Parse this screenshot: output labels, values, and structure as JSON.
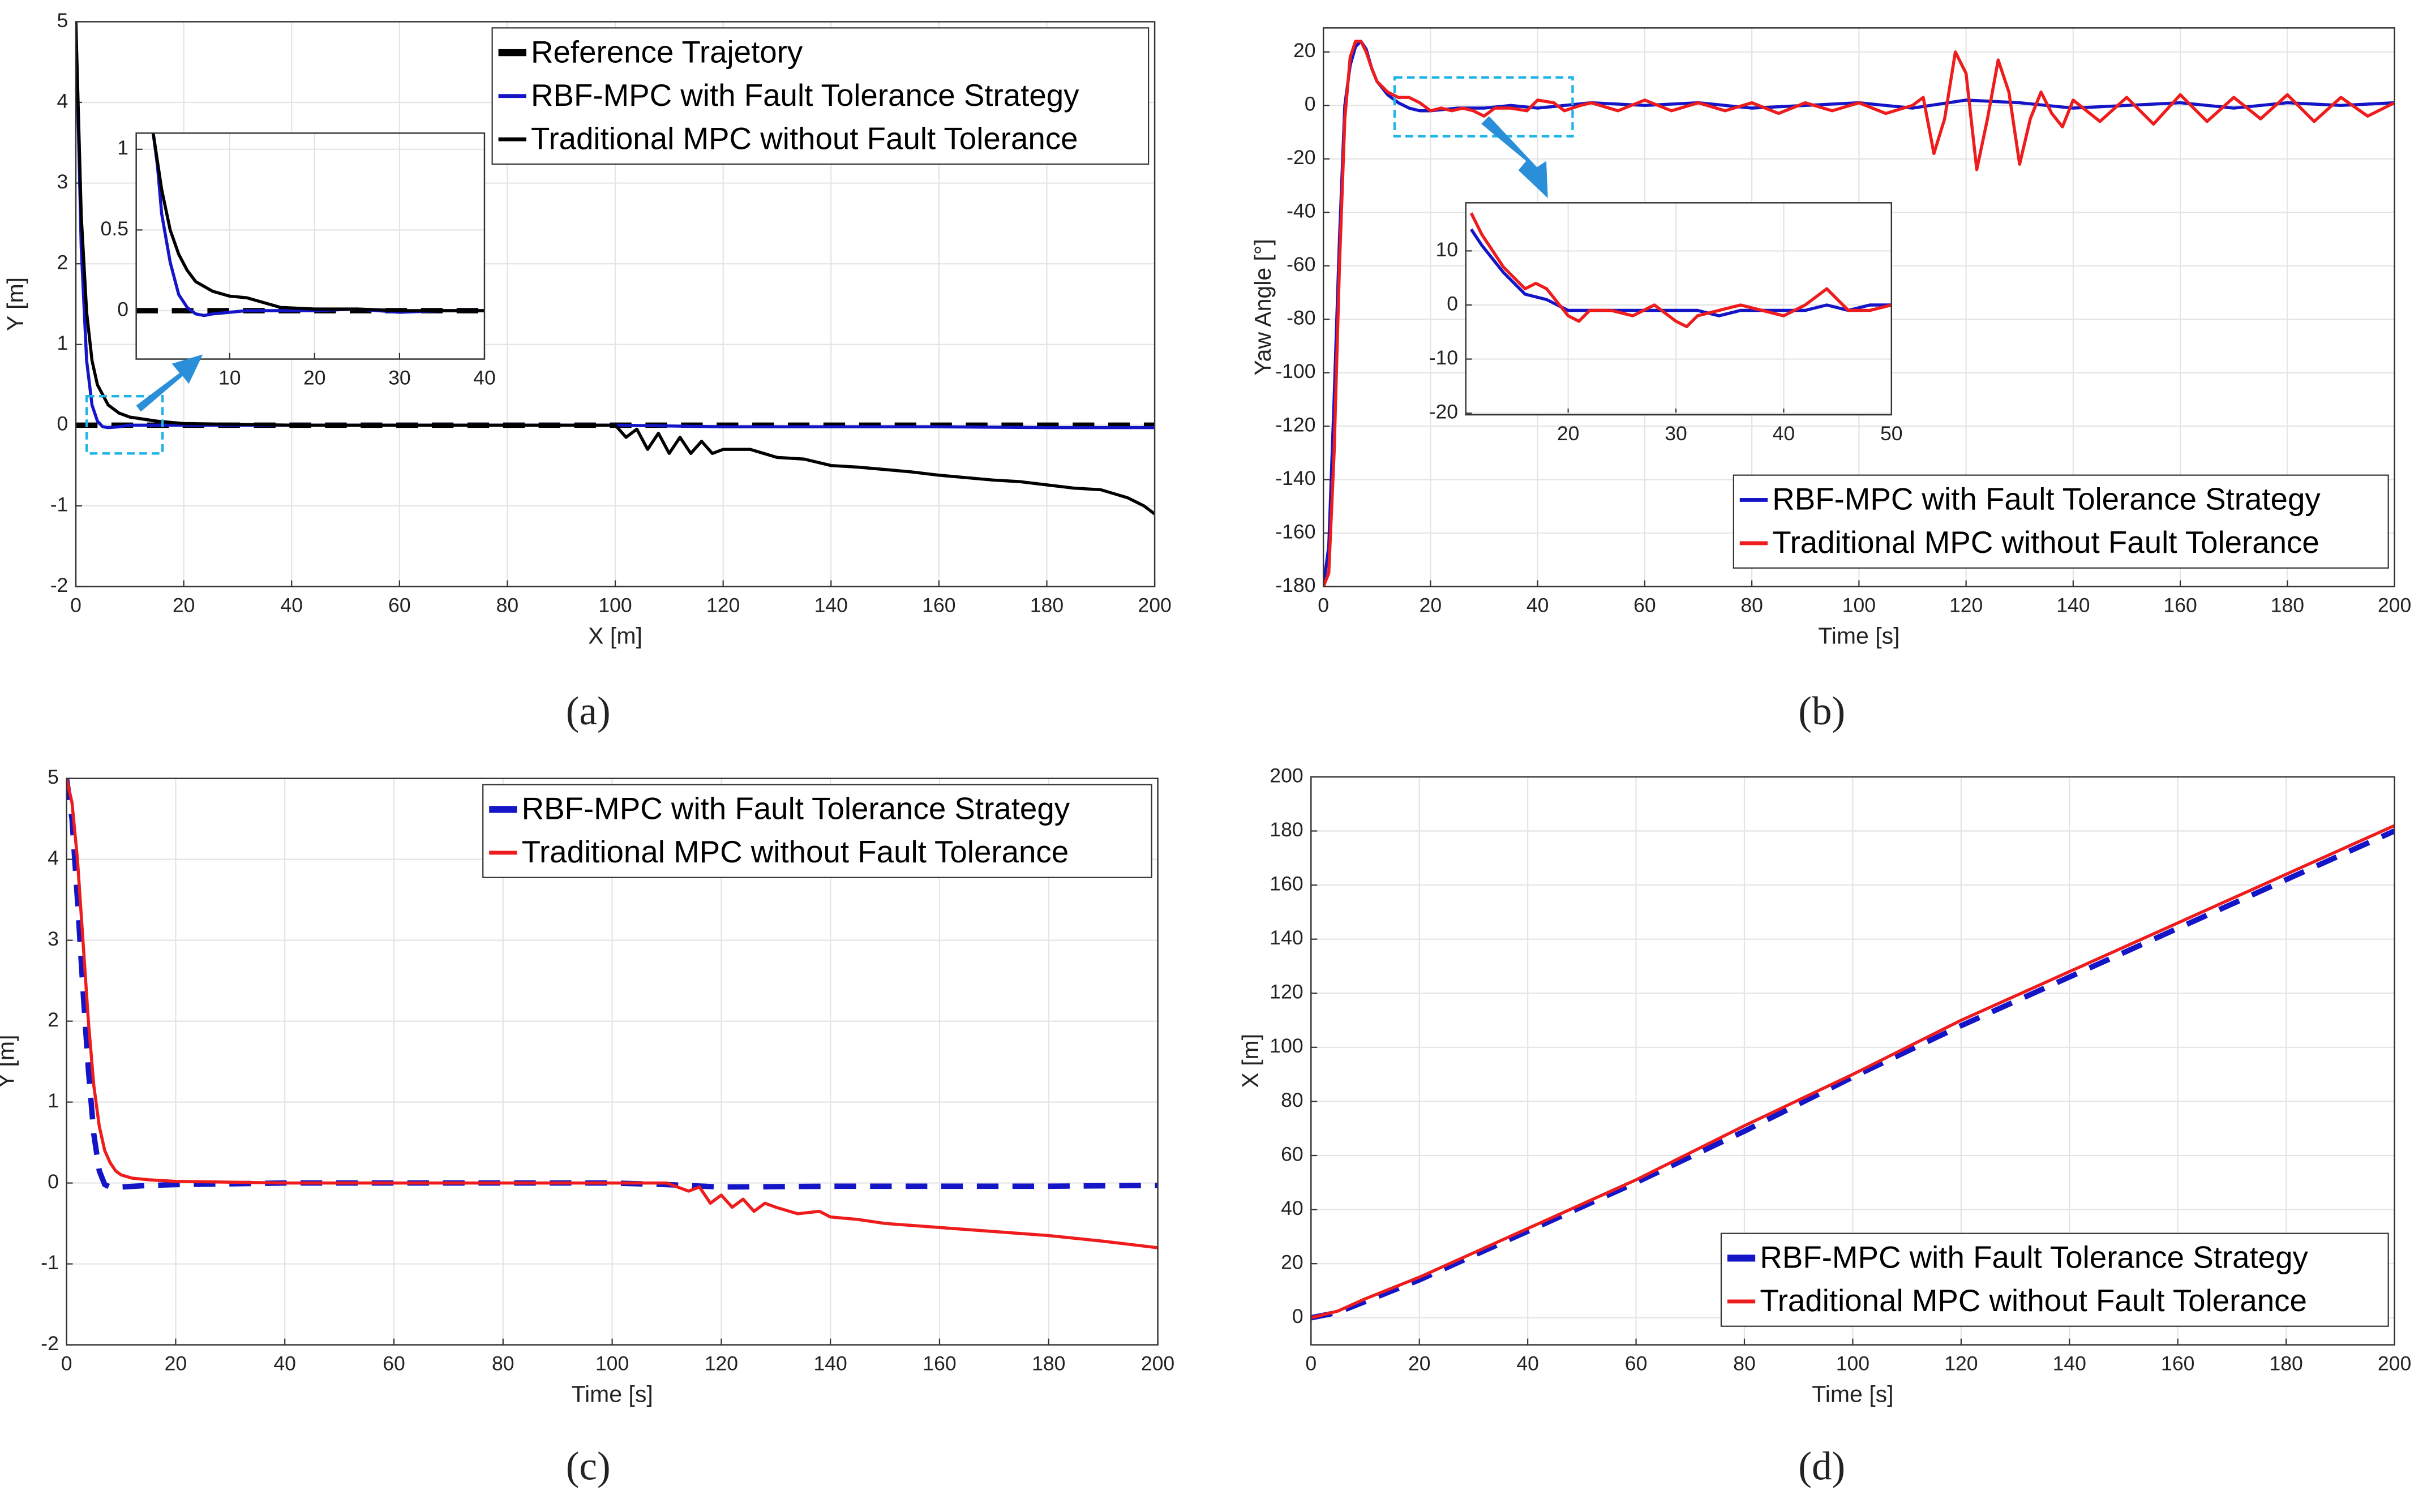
{
  "chart_data": [
    {
      "type": "line",
      "label": "(a)",
      "xlabel": "X [m]",
      "ylabel": "Y [m]",
      "xlim": [
        0,
        200
      ],
      "ylim": [
        -2,
        5
      ],
      "xticks": [
        0,
        20,
        40,
        60,
        80,
        100,
        120,
        140,
        160,
        180,
        200
      ],
      "yticks": [
        -2,
        -1,
        0,
        1,
        2,
        3,
        4,
        5
      ],
      "grid": true,
      "legend": "top-right",
      "series": [
        {
          "name": "Reference Trajetory",
          "color": "#000000",
          "dashed": true,
          "x": [
            0,
            200
          ],
          "values": [
            0,
            0
          ]
        },
        {
          "name": "RBF-MPC with Fault Tolerance Strategy",
          "color": "#1515c8",
          "dashed": false,
          "x": [
            0,
            1,
            2,
            3,
            4,
            5,
            6,
            8,
            10,
            15,
            20,
            40,
            60,
            80,
            100,
            120,
            140,
            160,
            180,
            200
          ],
          "values": [
            5,
            2.2,
            0.8,
            0.25,
            0.05,
            -0.02,
            -0.03,
            -0.02,
            0,
            0,
            0,
            0,
            0,
            0,
            0,
            -0.02,
            -0.02,
            -0.02,
            -0.03,
            -0.03
          ]
        },
        {
          "name": "Traditional MPC without Fault Tolerance",
          "color": "#000000",
          "dashed": false,
          "x": [
            0,
            1,
            2,
            3,
            4,
            6,
            8,
            10,
            15,
            20,
            30,
            40,
            60,
            80,
            100,
            102,
            104,
            106,
            108,
            110,
            112,
            114,
            116,
            118,
            120,
            125,
            130,
            135,
            140,
            145,
            150,
            155,
            160,
            165,
            170,
            175,
            180,
            185,
            190,
            195,
            198,
            200
          ],
          "values": [
            5,
            2.6,
            1.4,
            0.8,
            0.5,
            0.25,
            0.15,
            0.1,
            0.05,
            0.02,
            0.01,
            0,
            0,
            0,
            0,
            -0.15,
            -0.05,
            -0.3,
            -0.1,
            -0.35,
            -0.15,
            -0.35,
            -0.2,
            -0.35,
            -0.3,
            -0.3,
            -0.4,
            -0.42,
            -0.5,
            -0.52,
            -0.55,
            -0.58,
            -0.62,
            -0.65,
            -0.68,
            -0.7,
            -0.74,
            -0.78,
            -0.8,
            -0.9,
            -1,
            -1.1
          ]
        }
      ]
    },
    {
      "type": "line",
      "label": "(b)",
      "xlabel": "Time [s]",
      "ylabel": "Yaw Angle [°]",
      "xlim": [
        0,
        200
      ],
      "ylim": [
        -180,
        29
      ],
      "xticks": [
        0,
        20,
        40,
        60,
        80,
        100,
        120,
        140,
        160,
        180,
        200
      ],
      "yticks": [
        -180,
        -160,
        -140,
        -120,
        -100,
        -80,
        -60,
        -40,
        -20,
        0,
        20
      ],
      "grid": true,
      "legend": "bottom-right",
      "series": [
        {
          "name": "RBF-MPC with Fault Tolerance Strategy",
          "color": "#1515c8",
          "dashed": false,
          "x": [
            0,
            1,
            2,
            3,
            4,
            5,
            6,
            7,
            8,
            9,
            10,
            12,
            14,
            16,
            18,
            20,
            25,
            30,
            35,
            40,
            50,
            60,
            70,
            80,
            90,
            100,
            110,
            120,
            130,
            140,
            150,
            160,
            170,
            180,
            190,
            200
          ],
          "values": [
            -180,
            -165,
            -110,
            -50,
            0,
            15,
            22,
            24,
            21,
            14,
            9,
            4,
            1,
            -1,
            -2,
            -2,
            -1,
            -1,
            0,
            -1,
            1,
            0,
            1,
            -1,
            0,
            1,
            -1,
            2,
            1,
            -1,
            0,
            1,
            -1,
            1,
            0,
            1
          ]
        },
        {
          "name": "Traditional MPC without Fault Tolerance",
          "color": "#ee1c1c",
          "dashed": false,
          "x": [
            0,
            1,
            2,
            3,
            4,
            5,
            6,
            7,
            8,
            9,
            10,
            12,
            14,
            16,
            18,
            20,
            22,
            24,
            26,
            28,
            30,
            32,
            35,
            38,
            40,
            43,
            45,
            48,
            50,
            55,
            60,
            65,
            70,
            75,
            80,
            85,
            90,
            95,
            100,
            105,
            110,
            112,
            114,
            116,
            118,
            120,
            122,
            124,
            126,
            128,
            130,
            132,
            134,
            136,
            138,
            140,
            145,
            150,
            155,
            160,
            165,
            170,
            175,
            180,
            185,
            190,
            195,
            200
          ],
          "values": [
            -180,
            -175,
            -130,
            -60,
            -5,
            18,
            24,
            24,
            20,
            14,
            9,
            5,
            3,
            3,
            1,
            -2,
            -1,
            -2,
            -1,
            -2,
            -4,
            -1,
            -1,
            -2,
            2,
            1,
            -2,
            0,
            1,
            -2,
            2,
            -2,
            1,
            -2,
            1,
            -3,
            1,
            -2,
            1,
            -3,
            0,
            3,
            -18,
            -5,
            20,
            12,
            -24,
            -5,
            17,
            5,
            -22,
            -5,
            5,
            -3,
            -8,
            2,
            -6,
            3,
            -7,
            4,
            -6,
            3,
            -5,
            4,
            -6,
            3,
            -4,
            1
          ]
        }
      ]
    },
    {
      "type": "line",
      "label": "(c)",
      "xlabel": "Time [s]",
      "ylabel": "Y [m]",
      "xlim": [
        0,
        200
      ],
      "ylim": [
        -2,
        5
      ],
      "xticks": [
        0,
        20,
        40,
        60,
        80,
        100,
        120,
        140,
        160,
        180,
        200
      ],
      "yticks": [
        -2,
        -1,
        0,
        1,
        2,
        3,
        4,
        5
      ],
      "grid": true,
      "legend": "top-right",
      "series": [
        {
          "name": "RBF-MPC with Fault Tolerance Strategy",
          "color": "#1515c8",
          "dashed": true,
          "x": [
            0,
            1,
            2,
            3,
            4,
            5,
            6,
            7,
            8,
            10,
            15,
            20,
            40,
            60,
            80,
            100,
            110,
            120,
            140,
            160,
            180,
            200
          ],
          "values": [
            5,
            4.5,
            3.5,
            2.4,
            1.4,
            0.6,
            0.15,
            -0.02,
            -0.05,
            -0.05,
            -0.03,
            -0.02,
            0,
            0,
            0,
            0,
            -0.02,
            -0.05,
            -0.04,
            -0.04,
            -0.04,
            -0.03
          ]
        },
        {
          "name": "Traditional MPC without Fault Tolerance",
          "color": "#ee1c1c",
          "dashed": false,
          "x": [
            0,
            1,
            2,
            3,
            4,
            5,
            6,
            7,
            8,
            9,
            10,
            12,
            15,
            20,
            40,
            60,
            80,
            100,
            110,
            114,
            116,
            118,
            120,
            122,
            124,
            126,
            128,
            130,
            134,
            138,
            140,
            145,
            150,
            160,
            170,
            180,
            190,
            200
          ],
          "values": [
            5,
            4.7,
            4.0,
            3.0,
            2.0,
            1.2,
            0.7,
            0.4,
            0.25,
            0.15,
            0.1,
            0.06,
            0.04,
            0.02,
            0,
            0,
            0,
            0,
            0,
            -0.1,
            -0.05,
            -0.25,
            -0.15,
            -0.3,
            -0.2,
            -0.35,
            -0.25,
            -0.3,
            -0.38,
            -0.35,
            -0.42,
            -0.45,
            -0.5,
            -0.55,
            -0.6,
            -0.65,
            -0.72,
            -0.8
          ]
        }
      ]
    },
    {
      "type": "line",
      "label": "(d)",
      "xlabel": "Time [s]",
      "ylabel": "X [m]",
      "xlim": [
        0,
        200
      ],
      "ylim": [
        -10,
        200
      ],
      "xticks": [
        0,
        20,
        40,
        60,
        80,
        100,
        120,
        140,
        160,
        180,
        200
      ],
      "yticks": [
        0,
        20,
        40,
        60,
        80,
        100,
        120,
        140,
        160,
        180,
        200
      ],
      "grid": true,
      "legend": "bottom-right",
      "series": [
        {
          "name": "RBF-MPC with Fault Tolerance Strategy",
          "color": "#1515c8",
          "dashed": true,
          "x": [
            0,
            5,
            10,
            20,
            40,
            60,
            80,
            100,
            120,
            140,
            160,
            180,
            200
          ],
          "values": [
            0,
            2,
            6,
            14,
            32,
            50,
            69,
            89,
            108,
            126,
            144,
            162,
            180
          ]
        },
        {
          "name": "Traditional MPC without Fault Tolerance",
          "color": "#ee1c1c",
          "dashed": false,
          "x": [
            0,
            5,
            10,
            20,
            40,
            60,
            80,
            100,
            120,
            140,
            160,
            180,
            200
          ],
          "values": [
            0,
            2.5,
            7,
            15,
            33,
            51,
            71,
            90,
            110,
            128,
            146,
            164,
            182
          ]
        }
      ]
    },
    {
      "type": "line",
      "xlim": [
        -1,
        40
      ],
      "ylim": [
        -0.3,
        1.1
      ],
      "xticks": [
        10,
        20,
        30,
        40
      ],
      "yticks": [
        0,
        0.5,
        1
      ],
      "grid": true,
      "series": [
        {
          "color": "#000000",
          "dashed": true,
          "x": [
            -1,
            40
          ],
          "values": [
            0,
            0
          ]
        },
        {
          "color": "#1515c8",
          "dashed": false,
          "x": [
            1,
            1.5,
            2,
            3,
            4,
            5,
            6,
            7,
            8,
            10,
            12,
            15,
            20,
            25,
            30,
            35,
            40
          ],
          "values": [
            1.1,
            0.9,
            0.6,
            0.3,
            0.1,
            0.02,
            -0.02,
            -0.03,
            -0.02,
            -0.01,
            0,
            0,
            0,
            0.01,
            -0.01,
            0,
            0
          ]
        },
        {
          "color": "#000000",
          "dashed": false,
          "x": [
            1,
            2,
            3,
            4,
            5,
            6,
            8,
            10,
            12,
            14,
            16,
            20,
            25,
            30,
            35,
            40
          ],
          "values": [
            1.1,
            0.75,
            0.5,
            0.35,
            0.25,
            0.18,
            0.12,
            0.09,
            0.08,
            0.05,
            0.02,
            0.01,
            0.01,
            0,
            0,
            0
          ]
        }
      ]
    },
    {
      "type": "line",
      "xlim": [
        10.5,
        50
      ],
      "ylim": [
        -20.3,
        18.9
      ],
      "xticks": [
        20,
        30,
        40,
        50
      ],
      "yticks": [
        -20,
        -10,
        0,
        10
      ],
      "grid": true,
      "series": [
        {
          "color": "#1515c8",
          "dashed": false,
          "x": [
            11,
            12,
            14,
            16,
            18,
            20,
            22,
            24,
            26,
            28,
            30,
            32,
            34,
            36,
            38,
            40,
            42,
            44,
            46,
            48,
            50
          ],
          "values": [
            14,
            11,
            6,
            2,
            1,
            -1,
            -1,
            -1,
            -1,
            -1,
            -1,
            -1,
            -2,
            -1,
            -1,
            -1,
            -1,
            0,
            -1,
            0,
            0
          ]
        },
        {
          "color": "#ee1c1c",
          "dashed": false,
          "x": [
            11,
            12,
            14,
            16,
            17,
            18,
            20,
            21,
            22,
            24,
            26,
            28,
            30,
            31,
            32,
            34,
            36,
            38,
            40,
            42,
            44,
            46,
            48,
            50
          ],
          "values": [
            17,
            13,
            7,
            3,
            4,
            3,
            -2,
            -3,
            -1,
            -1,
            -2,
            0,
            -3,
            -4,
            -2,
            -1,
            0,
            -1,
            -2,
            0,
            3,
            -1,
            -1,
            0
          ]
        }
      ]
    }
  ]
}
